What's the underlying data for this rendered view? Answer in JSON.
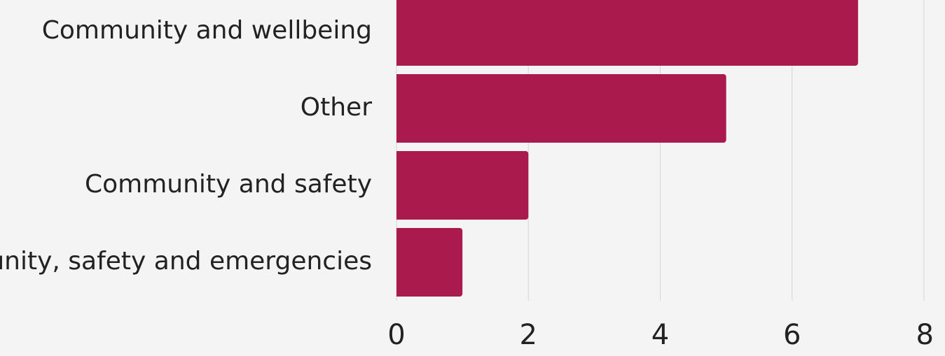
{
  "chart_data": {
    "type": "bar",
    "orientation": "horizontal",
    "categories": [
      "Community and wellbeing",
      "Other",
      "Community and safety",
      "Community, safety and emergencies"
    ],
    "values": [
      7,
      5,
      2,
      1
    ],
    "xlim": [
      0,
      8
    ],
    "xticks": [
      "0",
      "2",
      "4",
      "6",
      "8"
    ],
    "grid": true,
    "colors": {
      "bar": "#aa1a4c",
      "grid": "#d4d4d4",
      "background": "#f4f4f4"
    }
  }
}
